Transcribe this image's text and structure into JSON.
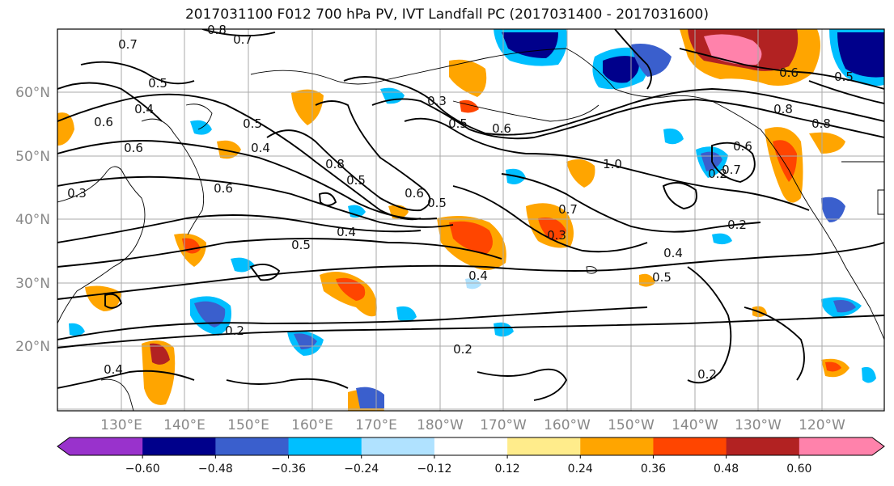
{
  "title": "2017031100 F012 700 hPa PV, IVT Landfall PC (2017031400 - 2017031600)",
  "lat_labels": [
    "60°N",
    "50°N",
    "40°N",
    "30°N",
    "20°N"
  ],
  "lon_labels": [
    "130°E",
    "140°E",
    "150°E",
    "160°E",
    "170°E",
    "180°W",
    "170°W",
    "160°W",
    "150°W",
    "140°W",
    "130°W",
    "120°W"
  ],
  "contour_labels": [
    "0.8",
    "0.7",
    "0.7",
    "0.5",
    "0.4",
    "0.6",
    "0.5",
    "0.4",
    "0.6",
    "0.3",
    "0.5",
    "0.8",
    "0.4",
    "0.6",
    "0.3",
    "0.5",
    "0.6",
    "0.5",
    "0.6",
    "0.7",
    "0.4",
    "0.5",
    "0.3",
    "0.4",
    "0.5",
    "1.0",
    "0.8",
    "0.7",
    "0.6",
    "0.8",
    "0.5",
    "0.6",
    "0.2",
    "0.2",
    "0.2",
    "0.2",
    "0.4",
    "0.2"
  ],
  "colorbar": {
    "ticks": [
      "−0.60",
      "−0.48",
      "−0.36",
      "−0.24",
      "−0.12",
      "0.12",
      "0.24",
      "0.36",
      "0.48",
      "0.60"
    ],
    "colors": [
      "#9932cc",
      "#00008b",
      "#3a5fcd",
      "#00bfff",
      "#b0e2ff",
      "#ffffff",
      "#ffec8b",
      "#ffa500",
      "#ff4500",
      "#b22222",
      "#ff82ab"
    ]
  },
  "fill_colors": {
    "neg_strong": "#00008b",
    "neg_med": "#3a5fcd",
    "neg_light": "#00bfff",
    "neg_faint": "#b0e2ff",
    "pos_faint": "#ffec8b",
    "pos_light": "#ffa500",
    "pos_med": "#ff4500",
    "pos_strong": "#b22222",
    "pos_max": "#ff82ab",
    "neg_max": "#9932cc"
  }
}
